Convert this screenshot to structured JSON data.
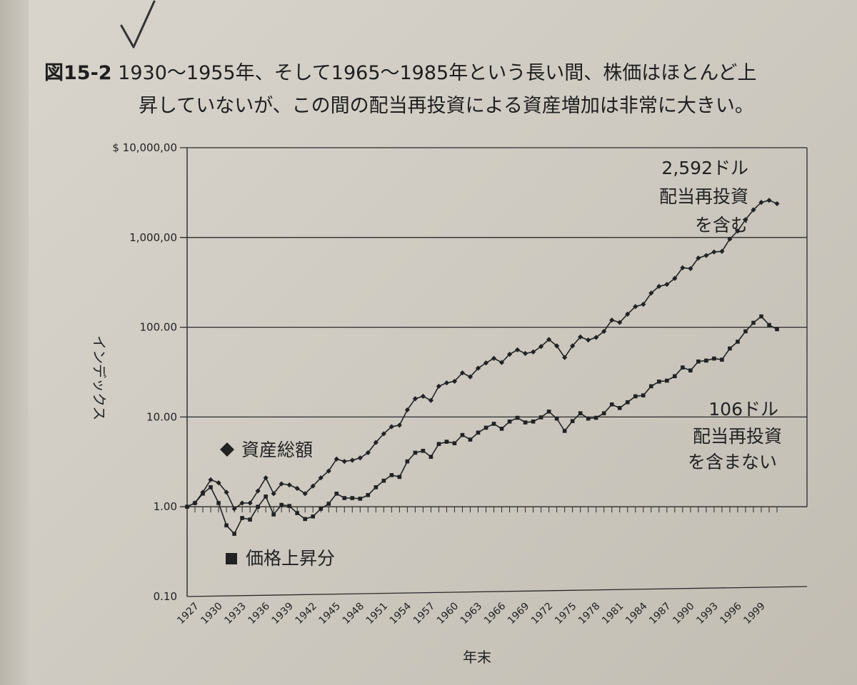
{
  "caption": {
    "figure_number": "図15-2",
    "line1": "1930～1955年、そして1965～1985年という長い間、株価はほとんど上",
    "line2": "昇していないが、この間の配当再投資による資産増加は非常に大きい。"
  },
  "chart_data": {
    "type": "line",
    "y_scale": "log",
    "ylim": [
      0.1,
      10000
    ],
    "y_ticks": [
      0.1,
      1,
      10,
      100,
      1000,
      10000
    ],
    "y_tick_labels": [
      "0.10",
      "1.00",
      "10.00",
      "100.00",
      "1,000,00",
      "$ 10,000,00"
    ],
    "ylabel": "インデックス",
    "xlabel": "年末",
    "x_tick_labels": [
      "1927",
      "1930",
      "1933",
      "1936",
      "1939",
      "1942",
      "1945",
      "1948",
      "1951",
      "1954",
      "1957",
      "1960",
      "1963",
      "1966",
      "1969",
      "1972",
      "1975",
      "1978",
      "1981",
      "1984",
      "1987",
      "1990",
      "1993",
      "1996",
      "1999"
    ],
    "grid": "horizontal",
    "series": [
      {
        "name": "資産総額",
        "marker": "diamond",
        "x": [
          1926,
          1927,
          1928,
          1929,
          1930,
          1931,
          1932,
          1933,
          1934,
          1935,
          1936,
          1937,
          1938,
          1939,
          1940,
          1941,
          1942,
          1943,
          1944,
          1945,
          1946,
          1947,
          1948,
          1949,
          1950,
          1951,
          1952,
          1953,
          1954,
          1955,
          1956,
          1957,
          1958,
          1959,
          1960,
          1961,
          1962,
          1963,
          1964,
          1965,
          1966,
          1967,
          1968,
          1969,
          1970,
          1971,
          1972,
          1973,
          1974,
          1975,
          1976,
          1977,
          1978,
          1979,
          1980,
          1981,
          1982,
          1983,
          1984,
          1985,
          1986,
          1987,
          1988,
          1989,
          1990,
          1991,
          1992,
          1993,
          1994,
          1995,
          1996,
          1997,
          1998,
          1999,
          2000,
          2001
        ],
        "y": [
          1.0,
          1.1,
          1.45,
          2.0,
          1.85,
          1.45,
          0.95,
          1.1,
          1.1,
          1.5,
          2.1,
          1.4,
          1.8,
          1.75,
          1.6,
          1.4,
          1.7,
          2.1,
          2.5,
          3.4,
          3.2,
          3.3,
          3.5,
          4.0,
          5.2,
          6.5,
          7.8,
          8.1,
          12.0,
          16.0,
          17.0,
          15.3,
          22.0,
          24.0,
          25.0,
          31.0,
          28.0,
          35.0,
          40.0,
          45.0,
          40.5,
          50.0,
          56.0,
          51.0,
          53.0,
          61.0,
          73.0,
          62.0,
          46.0,
          62.0,
          78.0,
          72.0,
          77.0,
          90.0,
          120.0,
          113.0,
          140.0,
          170.0,
          180.0,
          240.0,
          285.0,
          300.0,
          350.0,
          460.0,
          450.0,
          590.0,
          630.0,
          690.0,
          700.0,
          960.0,
          1180.0,
          1580.0,
          2030.0,
          2460.0,
          2592.0,
          2380.0
        ]
      },
      {
        "name": "価格上昇分",
        "marker": "square",
        "x": [
          1926,
          1927,
          1928,
          1929,
          1930,
          1931,
          1932,
          1933,
          1934,
          1935,
          1936,
          1937,
          1938,
          1939,
          1940,
          1941,
          1942,
          1943,
          1944,
          1945,
          1946,
          1947,
          1948,
          1949,
          1950,
          1951,
          1952,
          1953,
          1954,
          1955,
          1956,
          1957,
          1958,
          1959,
          1960,
          1961,
          1962,
          1963,
          1964,
          1965,
          1966,
          1967,
          1968,
          1969,
          1970,
          1971,
          1972,
          1973,
          1974,
          1975,
          1976,
          1977,
          1978,
          1979,
          1980,
          1981,
          1982,
          1983,
          1984,
          1985,
          1986,
          1987,
          1988,
          1989,
          1990,
          1991,
          1992,
          1993,
          1994,
          1995,
          1996,
          1997,
          1998,
          1999,
          2000,
          2001
        ],
        "y": [
          1.0,
          1.1,
          1.4,
          1.65,
          1.1,
          0.62,
          0.5,
          0.75,
          0.72,
          1.0,
          1.3,
          0.82,
          1.05,
          1.02,
          0.85,
          0.73,
          0.78,
          0.95,
          1.08,
          1.4,
          1.25,
          1.25,
          1.23,
          1.35,
          1.65,
          1.95,
          2.25,
          2.15,
          3.2,
          4.0,
          4.2,
          3.6,
          5.0,
          5.3,
          5.1,
          6.3,
          5.6,
          6.7,
          7.6,
          8.4,
          7.4,
          8.9,
          9.8,
          8.7,
          8.9,
          9.9,
          11.5,
          9.6,
          7.0,
          9.0,
          11.0,
          9.6,
          9.8,
          11.0,
          13.8,
          12.6,
          14.6,
          17.0,
          17.4,
          22.0,
          24.8,
          25.4,
          28.5,
          35.6,
          33.0,
          41.5,
          42.5,
          44.8,
          43.5,
          58.0,
          69.0,
          90.0,
          112.0,
          132.0,
          106.0,
          95.0
        ]
      }
    ],
    "annotations": {
      "total_legend": "資産総額",
      "price_legend": "価格上昇分",
      "total_end_value": "2,592ドル",
      "total_line2": "配当再投資",
      "total_line3": "を含む",
      "price_end_value": "106ドル",
      "price_line2": "配当再投資",
      "price_line3": "を含まない"
    }
  }
}
